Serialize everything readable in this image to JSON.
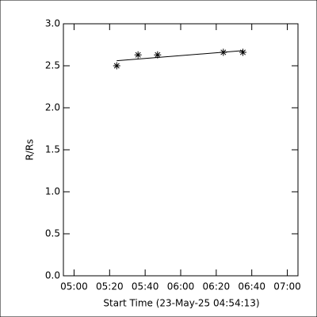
{
  "chart_data": {
    "type": "scatter",
    "xlabel": "Start Time (23-May-25 04:54:13)",
    "ylabel": "R/Rs",
    "x": [
      "05:24",
      "05:36",
      "05:47",
      "06:24",
      "06:35"
    ],
    "series": [
      {
        "color": "#000000",
        "marker": "asterisk",
        "values": [
          2.5,
          2.63,
          2.63,
          2.66,
          2.66
        ]
      }
    ],
    "fit": {
      "color": "#000000",
      "x": [
        "05:24",
        "06:35"
      ],
      "values": [
        2.56,
        2.68
      ]
    },
    "xlim": [
      "04:54",
      "07:06"
    ],
    "xticks": [
      "05:00",
      "05:20",
      "05:40",
      "06:00",
      "06:20",
      "06:40",
      "07:00"
    ],
    "ylim": [
      0,
      3
    ],
    "yticks": [
      {
        "value": 0,
        "label": "0.0"
      },
      0.5,
      {
        "value": 1,
        "label": "1.0"
      },
      1.5,
      {
        "value": 2,
        "label": "2.0"
      },
      2.5,
      {
        "value": 3,
        "label": "3.0"
      }
    ],
    "grid": false
  }
}
